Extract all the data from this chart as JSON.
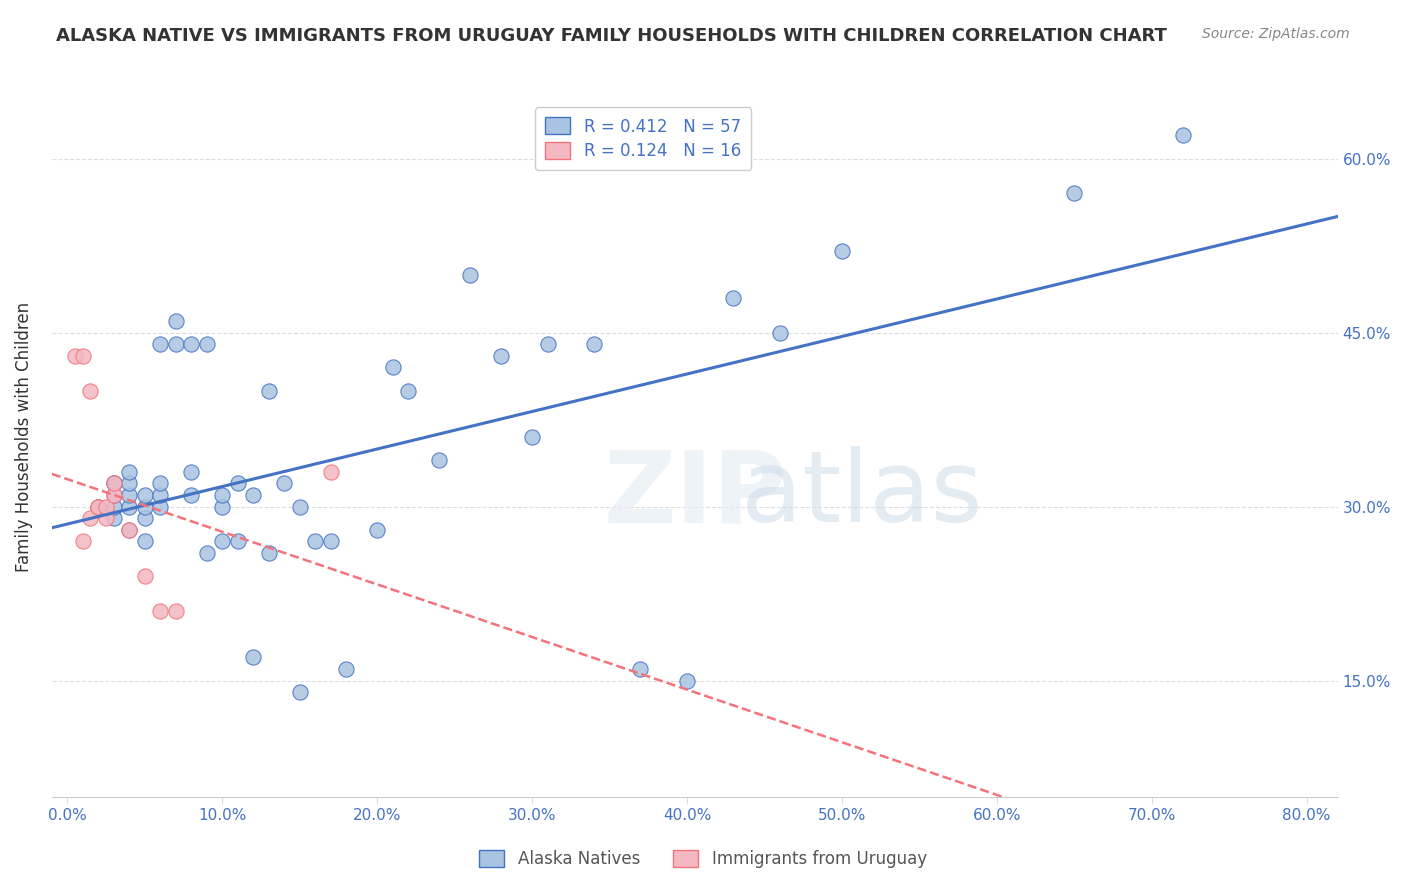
{
  "title": "ALASKA NATIVE VS IMMIGRANTS FROM URUGUAY FAMILY HOUSEHOLDS WITH CHILDREN CORRELATION CHART",
  "source": "Source: ZipAtlas.com",
  "ylabel": "Family Households with Children",
  "xlabel_bottom_left": "0.0%",
  "xlabel_bottom_right": "80.0%",
  "x_ticks": [
    0.0,
    0.1,
    0.2,
    0.3,
    0.4,
    0.5,
    0.6,
    0.7,
    0.8
  ],
  "y_ticks": [
    0.15,
    0.3,
    0.45,
    0.6
  ],
  "y_tick_labels": [
    "15.0%",
    "30.0%",
    "45.0%",
    "60.0%"
  ],
  "xlim": [
    -0.01,
    0.82
  ],
  "ylim": [
    0.05,
    0.67
  ],
  "blue_r": 0.412,
  "blue_n": 57,
  "pink_r": 0.124,
  "pink_n": 16,
  "blue_scatter_color": "#a8c4e0",
  "blue_line_color": "#4472c4",
  "pink_scatter_color": "#f4b8c1",
  "pink_line_color": "#f4727a",
  "legend_label_1": "Alaska Natives",
  "legend_label_2": "Immigrants from Uruguay",
  "watermark": "ZIPAtlas",
  "blue_x": [
    0.02,
    0.03,
    0.03,
    0.03,
    0.03,
    0.03,
    0.04,
    0.04,
    0.04,
    0.04,
    0.04,
    0.05,
    0.05,
    0.05,
    0.05,
    0.06,
    0.06,
    0.06,
    0.06,
    0.07,
    0.07,
    0.08,
    0.08,
    0.08,
    0.09,
    0.09,
    0.1,
    0.1,
    0.1,
    0.11,
    0.11,
    0.12,
    0.12,
    0.13,
    0.13,
    0.14,
    0.15,
    0.15,
    0.16,
    0.17,
    0.18,
    0.2,
    0.21,
    0.22,
    0.24,
    0.26,
    0.28,
    0.3,
    0.31,
    0.34,
    0.37,
    0.4,
    0.43,
    0.46,
    0.5,
    0.65,
    0.72
  ],
  "blue_y": [
    0.3,
    0.29,
    0.3,
    0.31,
    0.32,
    0.32,
    0.28,
    0.3,
    0.31,
    0.32,
    0.33,
    0.27,
    0.29,
    0.3,
    0.31,
    0.3,
    0.31,
    0.32,
    0.44,
    0.44,
    0.46,
    0.31,
    0.33,
    0.44,
    0.26,
    0.44,
    0.27,
    0.3,
    0.31,
    0.27,
    0.32,
    0.17,
    0.31,
    0.26,
    0.4,
    0.32,
    0.14,
    0.3,
    0.27,
    0.27,
    0.16,
    0.28,
    0.42,
    0.4,
    0.34,
    0.5,
    0.43,
    0.36,
    0.44,
    0.44,
    0.16,
    0.15,
    0.48,
    0.45,
    0.52,
    0.57,
    0.62
  ],
  "pink_x": [
    0.005,
    0.01,
    0.01,
    0.015,
    0.015,
    0.02,
    0.02,
    0.025,
    0.025,
    0.03,
    0.03,
    0.04,
    0.05,
    0.06,
    0.07,
    0.17
  ],
  "pink_y": [
    0.43,
    0.27,
    0.43,
    0.29,
    0.4,
    0.3,
    0.3,
    0.29,
    0.3,
    0.31,
    0.32,
    0.28,
    0.24,
    0.21,
    0.21,
    0.33
  ],
  "background_color": "#ffffff",
  "grid_color": "#dddddd"
}
